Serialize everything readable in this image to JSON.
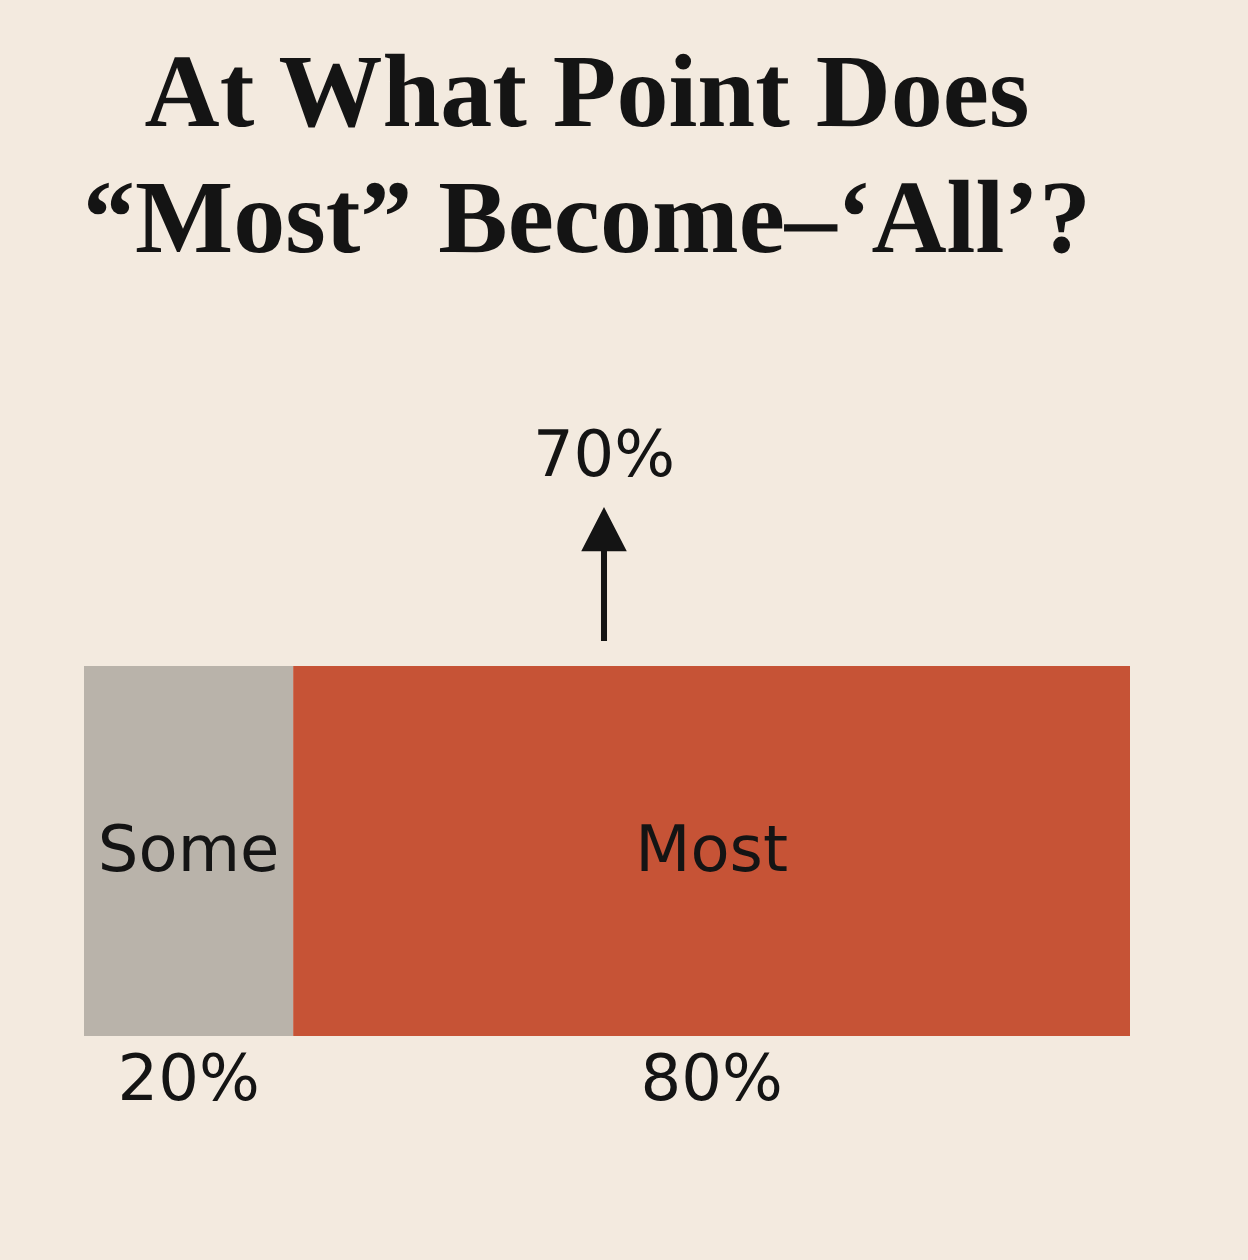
{
  "chart_data": {
    "type": "bar",
    "title": "At What Point Does “Most” Become–‘All’?",
    "categories": [
      null
    ],
    "orientation": "horizontal",
    "stacked": true,
    "series": [
      {
        "name": "Some",
        "color": "#b9b3aa",
        "values": [
          20
        ],
        "value_labels": [
          "20%"
        ]
      },
      {
        "name": "Most",
        "color": "#c65336",
        "values": [
          80
        ],
        "value_labels": [
          "80%"
        ]
      }
    ],
    "tick_labels": false,
    "legend": false,
    "annotations": [
      "70%"
    ]
  }
}
